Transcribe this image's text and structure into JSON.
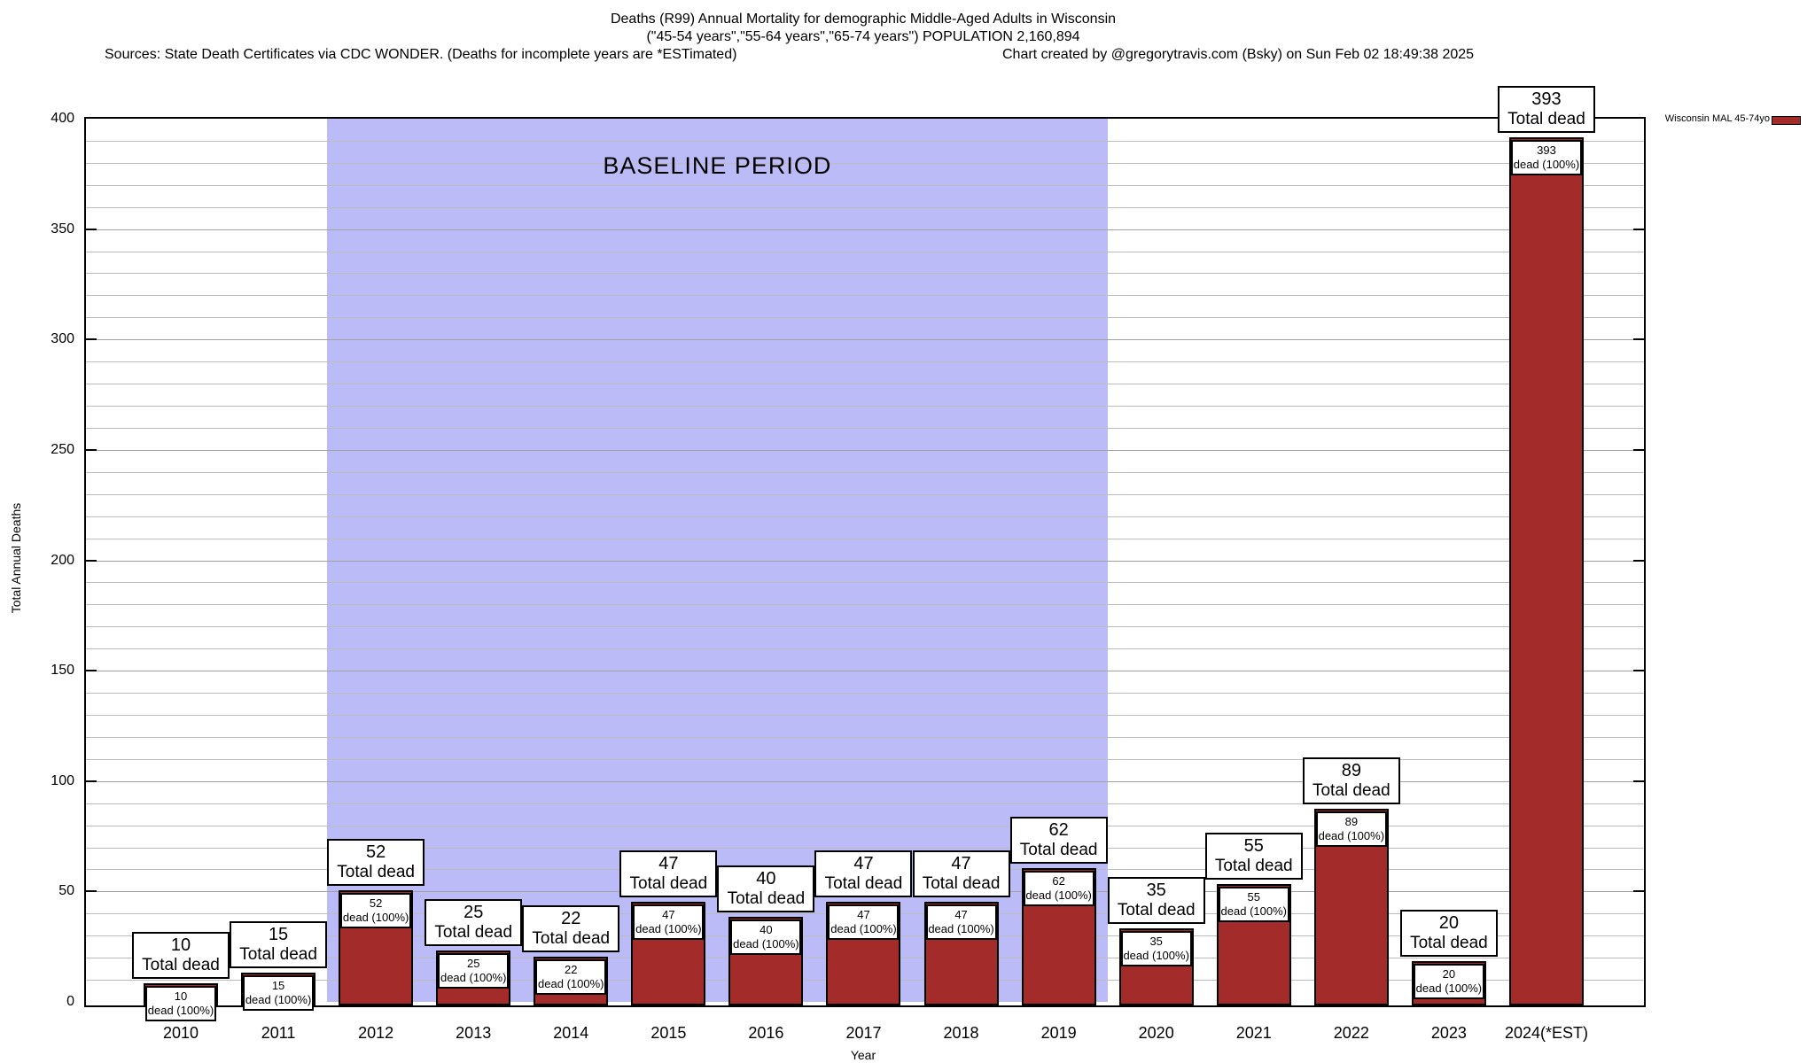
{
  "title": {
    "line1": "Deaths (R99) Annual Mortality for demographic Middle-Aged Adults in Wisconsin",
    "line2": "(\"45-54 years\",\"55-64 years\",\"65-74 years\") POPULATION 2,160,894",
    "sources": "Sources: State Death Certificates via CDC WONDER. (Deaths for incomplete years are *ESTimated)",
    "credit": "Chart created by @gregorytravis.com (Bsky) on Sun Feb 02 18:49:38 2025"
  },
  "legend": {
    "label": "Wisconsin MAL 45-74yo",
    "swatch_color": "#a32b2a"
  },
  "baseline": {
    "label": "BASELINE PERIOD",
    "start_year": "2012",
    "end_year": "2019",
    "fill_color": "#bbbbf8"
  },
  "axes": {
    "ylabel": "Total Annual Deaths",
    "xlabel": "Year",
    "ymin": 0,
    "ymax": 400,
    "major_tick_step": 50,
    "minor_tick_step": 10,
    "ytick_labels": [
      "0",
      "50",
      "100",
      "150",
      "200",
      "250",
      "300",
      "350",
      "400"
    ]
  },
  "bar_labels": {
    "total_suffix": "Total dead",
    "dead_suffix": "dead (100%)"
  },
  "colors": {
    "bar_fill": "#a32b2a",
    "bar_border": "#000000",
    "baseline_fill": "#bbbbf8",
    "minor_grid": "#bcbcbc",
    "major_grid": "#a2a2a2",
    "text": "#000000"
  },
  "chart_data": {
    "type": "bar",
    "title": "Deaths (R99) Annual Mortality for demographic Middle-Aged Adults in Wisconsin (\"45-54 years\",\"55-64 years\",\"65-74 years\") POPULATION 2,160,894",
    "xlabel": "Year",
    "ylabel": "Total Annual Deaths",
    "ylim": [
      0,
      400
    ],
    "grid": true,
    "legend_position": "top-right",
    "categories": [
      "2010",
      "2011",
      "2012",
      "2013",
      "2014",
      "2015",
      "2016",
      "2017",
      "2018",
      "2019",
      "2020",
      "2021",
      "2022",
      "2023",
      "2024(*EST)"
    ],
    "series": [
      {
        "name": "Wisconsin MAL 45-74yo",
        "values": [
          10,
          15,
          52,
          25,
          22,
          47,
          40,
          47,
          47,
          62,
          35,
          55,
          89,
          20,
          393
        ]
      }
    ],
    "annotations": {
      "baseline_period_years": [
        "2012",
        "2013",
        "2014",
        "2015",
        "2016",
        "2017",
        "2018",
        "2019"
      ],
      "baseline_label": "BASELINE PERIOD",
      "per_bar_total_label": "{value} Total dead",
      "per_bar_dead_label": "{value} dead (100%)"
    }
  }
}
